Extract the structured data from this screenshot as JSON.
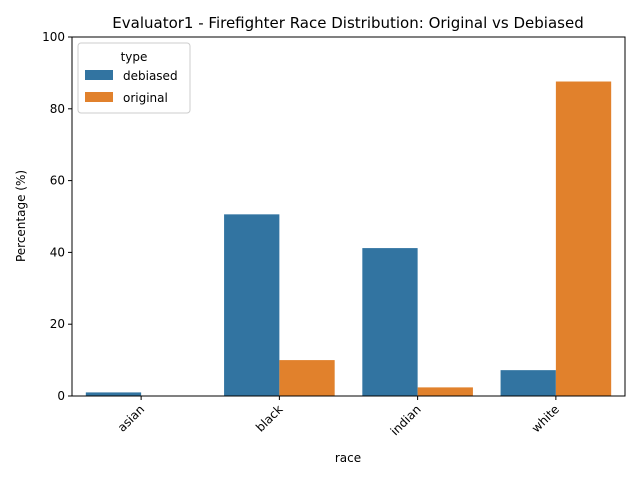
{
  "chart_data": {
    "type": "bar",
    "title": "Evaluator1 - Firefighter Race Distribution: Original vs Debiased",
    "xlabel": "race",
    "ylabel": "Percentage (%)",
    "categories": [
      "asian",
      "black",
      "indian",
      "white"
    ],
    "ylim": [
      0,
      100
    ],
    "yticks": [
      0,
      20,
      40,
      60,
      80,
      100
    ],
    "grid": false,
    "legend": {
      "title": "type",
      "placement": "top-left"
    },
    "series": [
      {
        "name": "debiased",
        "color": "#3274a1",
        "values": [
          1.0,
          50.6,
          41.2,
          7.2
        ]
      },
      {
        "name": "original",
        "color": "#e1812c",
        "values": [
          0.0,
          10.0,
          2.4,
          87.6
        ]
      }
    ]
  }
}
